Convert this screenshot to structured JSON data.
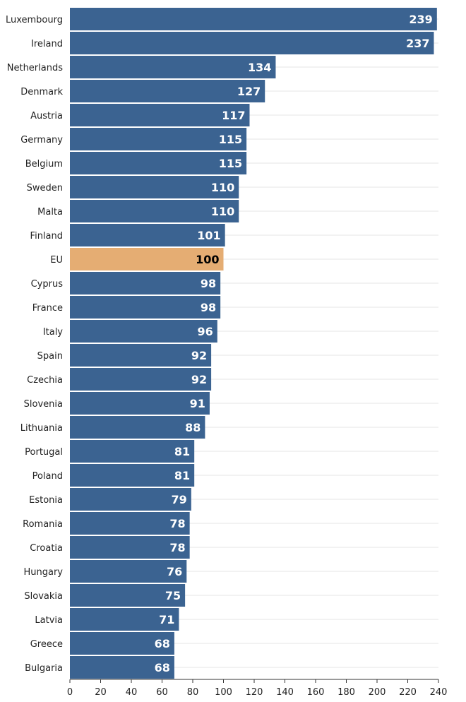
{
  "chart_data": {
    "type": "bar",
    "orientation": "horizontal",
    "categories": [
      "Luxembourg",
      "Ireland",
      "Netherlands",
      "Denmark",
      "Austria",
      "Germany",
      "Belgium",
      "Sweden",
      "Malta",
      "Finland",
      "EU",
      "Cyprus",
      "France",
      "Italy",
      "Spain",
      "Czechia",
      "Slovenia",
      "Lithuania",
      "Portugal",
      "Poland",
      "Estonia",
      "Romania",
      "Croatia",
      "Hungary",
      "Slovakia",
      "Latvia",
      "Greece",
      "Bulgaria"
    ],
    "values": [
      239,
      237,
      134,
      127,
      117,
      115,
      115,
      110,
      110,
      101,
      100,
      98,
      98,
      96,
      92,
      92,
      91,
      88,
      81,
      81,
      79,
      78,
      78,
      76,
      75,
      71,
      68,
      68
    ],
    "highlight_category": "EU",
    "xlim": [
      0,
      240
    ],
    "xticks": [
      0,
      20,
      40,
      60,
      80,
      100,
      120,
      140,
      160,
      180,
      200,
      220,
      240
    ],
    "title": "",
    "xlabel": "",
    "ylabel": "",
    "grid": true,
    "colors": {
      "bar": "#3b6391",
      "highlight": "#e5ad73",
      "bar_label": "#ffffff",
      "highlight_label": "#000000",
      "grid": "#e6e6e6",
      "axis": "#333333"
    }
  }
}
